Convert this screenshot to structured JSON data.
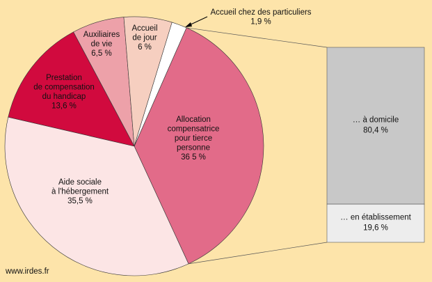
{
  "chart_data": {
    "type": "pie-of-bar",
    "source": "www.irdes.fr",
    "slices": [
      {
        "name": "Allocation\ncompensatrice\npour tierce\npersonne",
        "value": 36.5,
        "value_label": "36 5 %",
        "color": "#e26b89"
      },
      {
        "name": "Aide sociale\nà l'hébergement",
        "value": 35.5,
        "value_label": "35,5 %",
        "color": "#fce5e5"
      },
      {
        "name": "Prestation\nde compensation\ndu handicap",
        "value": 13.6,
        "value_label": "13,6 %",
        "color": "#d10a3e"
      },
      {
        "name": "Auxiliaires\nde vie",
        "value": 6.5,
        "value_label": "6,5 %",
        "color": "#eda1a9"
      },
      {
        "name": "Accueil\nde jour",
        "value": 6,
        "value_label": "6 %",
        "color": "#f6cfc0"
      },
      {
        "name": "Accueil chez des particuliers",
        "value": 1.9,
        "value_label": "1,9 %",
        "color": "#ffffff"
      }
    ],
    "breakdown": [
      {
        "name": "… à domicile",
        "value": 80.4,
        "value_label": "80,4 %",
        "color": "#c8c8c8"
      },
      {
        "name": "… en établissement",
        "value": 19.6,
        "value_label": "19,6 %",
        "color": "#ededed"
      }
    ]
  }
}
